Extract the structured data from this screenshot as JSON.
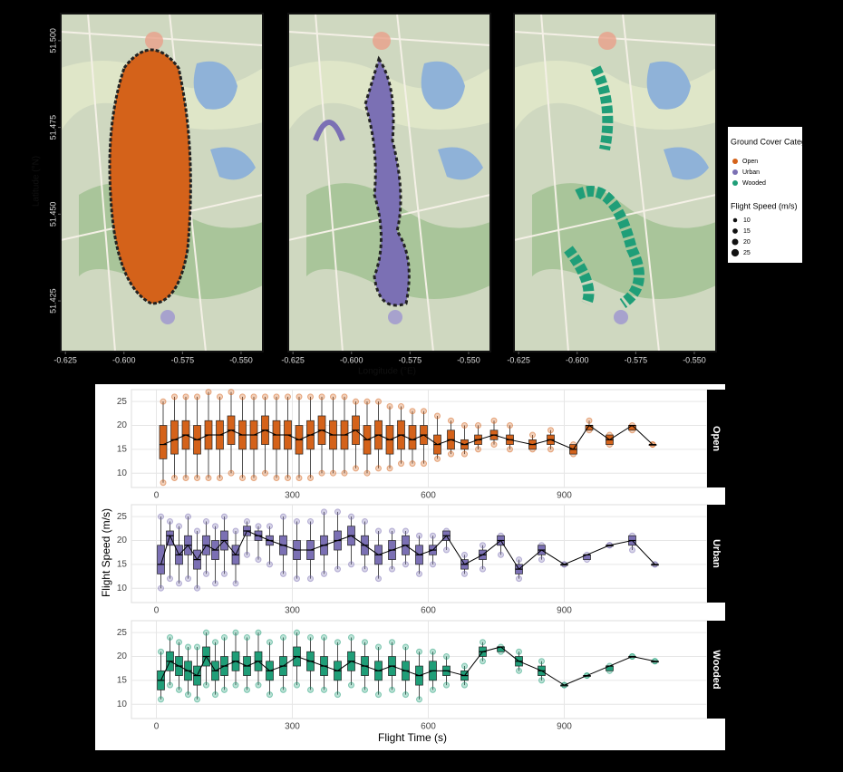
{
  "chart_data": [
    {
      "type": "map",
      "xlabel": "Longitude (°E)",
      "ylabel": "Latitude (°N)",
      "xlim": [
        -0.627,
        -0.5407
      ],
      "ylim": [
        51.4104,
        51.5078
      ],
      "xticks": [
        {
          "value": -0.625,
          "label": "-0.625"
        },
        {
          "value": -0.6,
          "label": "-0.600"
        },
        {
          "value": -0.575,
          "label": "-0.575"
        },
        {
          "value": -0.55,
          "label": "-0.550"
        }
      ],
      "yticks": [
        51.425,
        {
          "value": 51.45,
          "label": "51.450"
        },
        51.475,
        {
          "value": 51.5,
          "label": "51.500"
        }
      ],
      "legend_title": "Ground Cover Category",
      "series": [
        {
          "name": "Open",
          "color": "#d4621a"
        },
        {
          "name": "Urban",
          "color": "#7b70b4"
        },
        {
          "name": "Wooded",
          "color": "#1f9e78"
        }
      ],
      "size_legend": {
        "title": "Flight Speed (m/s)",
        "values": [
          10,
          15,
          20,
          25
        ]
      }
    },
    {
      "type": "boxplot",
      "xlabel": "Flight Time (s)",
      "ylabel": "Flight Speed (m/s)",
      "xlim": [
        -55,
        1215
      ],
      "ylim": [
        7,
        27.5
      ],
      "xticks": [
        0,
        300,
        600,
        900
      ],
      "yticks": [
        10,
        15,
        20,
        25
      ],
      "series": [
        {
          "name": "Open",
          "color": "#d4621a",
          "x": [
            15,
            40,
            65,
            90,
            115,
            140,
            165,
            190,
            215,
            240,
            265,
            290,
            315,
            340,
            365,
            390,
            415,
            440,
            465,
            490,
            515,
            540,
            565,
            590,
            620,
            650,
            680,
            710,
            745,
            780,
            830,
            870,
            920,
            955,
            1000,
            1050,
            1095
          ],
          "low": [
            8,
            9,
            9,
            9,
            9,
            9,
            10,
            9,
            9,
            10,
            9,
            9,
            9,
            9,
            10,
            10,
            10,
            11,
            10,
            11,
            11,
            12,
            12,
            12,
            13,
            14,
            14,
            15,
            16,
            15,
            15,
            15,
            14,
            19,
            16,
            19,
            16
          ],
          "q1": [
            13,
            14,
            15,
            14,
            15,
            15,
            16,
            15,
            15,
            16,
            15,
            15,
            14,
            15,
            16,
            15,
            15,
            16,
            14,
            15,
            14,
            15,
            15,
            16,
            14,
            15,
            15,
            16,
            17,
            16,
            15,
            16,
            14,
            19,
            16,
            19,
            16
          ],
          "median": [
            16,
            17,
            18,
            17,
            18,
            18,
            19,
            18,
            18,
            19,
            18,
            18,
            17,
            18,
            19,
            18,
            18,
            19,
            17,
            18,
            17,
            18,
            17,
            18,
            16,
            17,
            16,
            17,
            18,
            17,
            16,
            17,
            15,
            20,
            17,
            20,
            16
          ],
          "q3": [
            20,
            21,
            21,
            20,
            21,
            21,
            22,
            21,
            21,
            22,
            21,
            21,
            20,
            21,
            22,
            21,
            21,
            22,
            20,
            21,
            20,
            21,
            20,
            20,
            18,
            19,
            17,
            18,
            19,
            18,
            17,
            18,
            16,
            20,
            18,
            20,
            16
          ],
          "high": [
            25,
            26,
            26,
            26,
            27,
            26,
            27,
            26,
            26,
            26,
            26,
            26,
            26,
            26,
            26,
            26,
            26,
            25,
            25,
            25,
            24,
            24,
            23,
            23,
            22,
            21,
            20,
            20,
            21,
            20,
            18,
            19,
            16,
            21,
            18,
            20,
            16
          ]
        },
        {
          "name": "Urban",
          "color": "#7b70b4",
          "x": [
            10,
            30,
            50,
            70,
            90,
            110,
            130,
            150,
            175,
            200,
            225,
            250,
            280,
            310,
            340,
            370,
            400,
            430,
            460,
            490,
            520,
            550,
            580,
            610,
            640,
            680,
            720,
            760,
            800,
            850,
            900,
            950,
            1000,
            1050,
            1100
          ],
          "low": [
            10,
            12,
            11,
            12,
            10,
            13,
            11,
            13,
            11,
            17,
            16,
            15,
            13,
            12,
            12,
            13,
            14,
            15,
            14,
            12,
            14,
            15,
            13,
            15,
            18,
            13,
            14,
            17,
            12,
            16,
            15,
            16,
            19,
            18,
            15
          ],
          "q1": [
            13,
            19,
            15,
            17,
            14,
            17,
            16,
            18,
            15,
            21,
            20,
            19,
            17,
            16,
            16,
            17,
            18,
            19,
            17,
            15,
            16,
            17,
            15,
            17,
            20,
            14,
            16,
            19,
            13,
            17,
            15,
            16,
            19,
            19,
            15
          ],
          "median": [
            15,
            21,
            17,
            19,
            16,
            19,
            18,
            20,
            17,
            22,
            21,
            20,
            19,
            18,
            18,
            19,
            20,
            21,
            19,
            17,
            18,
            19,
            17,
            18,
            21,
            15,
            17,
            20,
            14,
            18,
            15,
            17,
            19,
            20,
            15
          ],
          "q3": [
            19,
            22,
            19,
            21,
            18,
            21,
            20,
            22,
            19,
            23,
            22,
            21,
            21,
            20,
            20,
            21,
            22,
            23,
            21,
            19,
            20,
            21,
            19,
            19,
            22,
            16,
            18,
            21,
            15,
            19,
            15,
            17,
            19,
            21,
            15
          ],
          "high": [
            25,
            24,
            23,
            25,
            22,
            24,
            23,
            25,
            22,
            24,
            23,
            23,
            25,
            24,
            24,
            26,
            26,
            25,
            24,
            22,
            22,
            22,
            21,
            21,
            22,
            17,
            19,
            21,
            16,
            19,
            15,
            17,
            19,
            21,
            15
          ]
        },
        {
          "name": "Wooded",
          "color": "#1f9e78",
          "x": [
            10,
            30,
            50,
            70,
            90,
            110,
            130,
            150,
            175,
            200,
            225,
            250,
            280,
            310,
            340,
            370,
            400,
            430,
            460,
            490,
            520,
            550,
            580,
            610,
            640,
            680,
            720,
            760,
            800,
            850,
            900,
            950,
            1000,
            1050,
            1100
          ],
          "low": [
            11,
            14,
            13,
            12,
            11,
            14,
            12,
            13,
            14,
            13,
            14,
            12,
            13,
            14,
            13,
            13,
            12,
            14,
            13,
            12,
            13,
            12,
            11,
            13,
            14,
            14,
            19,
            21,
            17,
            15,
            14,
            16,
            17,
            20,
            19
          ],
          "q1": [
            13,
            17,
            16,
            15,
            14,
            18,
            15,
            16,
            17,
            16,
            17,
            15,
            16,
            18,
            17,
            16,
            15,
            17,
            16,
            15,
            16,
            15,
            14,
            15,
            16,
            15,
            20,
            21,
            18,
            16,
            14,
            16,
            17,
            20,
            19
          ],
          "median": [
            15,
            19,
            18,
            17,
            16,
            20,
            17,
            18,
            19,
            18,
            19,
            17,
            18,
            20,
            19,
            18,
            17,
            19,
            18,
            17,
            18,
            17,
            16,
            17,
            17,
            16,
            21,
            22,
            19,
            17,
            14,
            16,
            18,
            20,
            19
          ],
          "q3": [
            17,
            21,
            20,
            19,
            18,
            22,
            19,
            20,
            21,
            20,
            21,
            19,
            20,
            22,
            21,
            20,
            19,
            21,
            20,
            19,
            20,
            19,
            18,
            19,
            18,
            17,
            22,
            22,
            20,
            18,
            14,
            16,
            18,
            20,
            19
          ],
          "high": [
            21,
            24,
            23,
            22,
            22,
            25,
            23,
            24,
            25,
            24,
            25,
            23,
            24,
            25,
            24,
            24,
            23,
            24,
            23,
            22,
            23,
            22,
            21,
            21,
            20,
            18,
            23,
            22,
            21,
            19,
            14,
            16,
            18,
            20,
            19
          ]
        }
      ]
    }
  ]
}
